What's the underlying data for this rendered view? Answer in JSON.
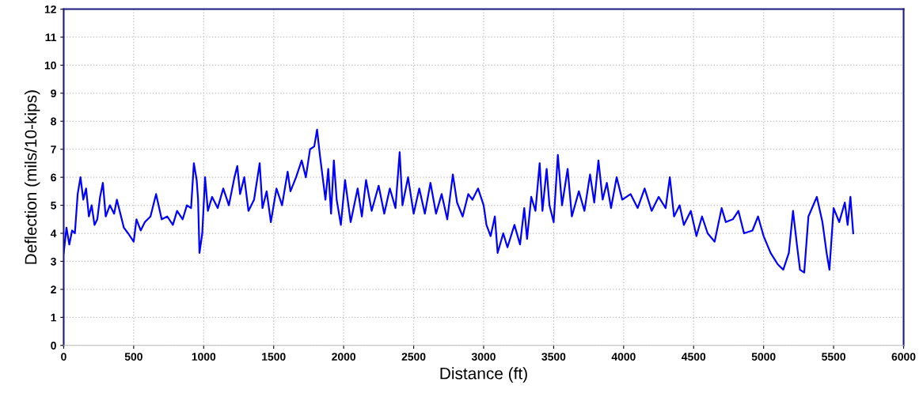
{
  "chart_data": {
    "type": "line",
    "xlabel": "Distance (ft)",
    "ylabel": "Deflection (mils/10-kips)",
    "xlim": [
      0,
      6000
    ],
    "xticks": [
      0,
      500,
      1000,
      1500,
      2000,
      2500,
      3000,
      3500,
      4000,
      4500,
      5000,
      5500,
      6000
    ],
    "ylim": [
      0,
      12
    ],
    "yticks": [
      0,
      1,
      2,
      3,
      4,
      5,
      6,
      7,
      8,
      9,
      10,
      11,
      12
    ],
    "grid": true,
    "marker": "none",
    "line_style": "solid",
    "series": [
      {
        "color": "#0000ff",
        "x": [
          0,
          20,
          40,
          60,
          80,
          100,
          120,
          140,
          160,
          180,
          200,
          220,
          240,
          260,
          280,
          300,
          330,
          360,
          380,
          400,
          430,
          460,
          500,
          520,
          550,
          580,
          620,
          660,
          700,
          740,
          780,
          810,
          850,
          880,
          910,
          930,
          950,
          960,
          970,
          990,
          1010,
          1030,
          1060,
          1100,
          1140,
          1180,
          1220,
          1240,
          1260,
          1290,
          1320,
          1360,
          1400,
          1420,
          1450,
          1480,
          1520,
          1560,
          1600,
          1620,
          1660,
          1700,
          1730,
          1760,
          1790,
          1810,
          1830,
          1850,
          1870,
          1890,
          1910,
          1930,
          1950,
          1980,
          2010,
          2050,
          2100,
          2130,
          2160,
          2200,
          2250,
          2290,
          2330,
          2370,
          2400,
          2420,
          2460,
          2500,
          2540,
          2580,
          2620,
          2660,
          2700,
          2740,
          2780,
          2810,
          2850,
          2890,
          2920,
          2960,
          3000,
          3020,
          3050,
          3080,
          3100,
          3140,
          3170,
          3220,
          3260,
          3290,
          3310,
          3340,
          3370,
          3400,
          3420,
          3450,
          3470,
          3500,
          3530,
          3560,
          3600,
          3630,
          3680,
          3720,
          3760,
          3790,
          3820,
          3850,
          3880,
          3910,
          3950,
          3990,
          4050,
          4100,
          4150,
          4200,
          4250,
          4300,
          4330,
          4360,
          4400,
          4430,
          4480,
          4520,
          4560,
          4600,
          4650,
          4700,
          4730,
          4780,
          4820,
          4860,
          4920,
          4960,
          5000,
          5050,
          5100,
          5140,
          5180,
          5210,
          5240,
          5260,
          5290,
          5320,
          5380,
          5420,
          5450,
          5470,
          5500,
          5540,
          5580,
          5600,
          5620,
          5640
        ],
        "values": [
          3.3,
          4.2,
          3.6,
          4.1,
          4.0,
          5.4,
          6.0,
          5.2,
          5.6,
          4.6,
          5.0,
          4.3,
          4.5,
          5.3,
          5.8,
          4.6,
          5.0,
          4.7,
          5.2,
          4.8,
          4.2,
          4.0,
          3.7,
          4.5,
          4.1,
          4.4,
          4.6,
          5.4,
          4.5,
          4.6,
          4.3,
          4.8,
          4.5,
          5.0,
          4.9,
          6.5,
          5.9,
          5.2,
          3.3,
          4.0,
          6.0,
          4.8,
          5.3,
          4.9,
          5.6,
          5.0,
          6.0,
          6.4,
          5.4,
          6.0,
          4.8,
          5.2,
          6.5,
          4.9,
          5.5,
          4.4,
          5.6,
          5.0,
          6.2,
          5.5,
          6.0,
          6.6,
          6.0,
          7.0,
          7.1,
          7.7,
          6.8,
          6.0,
          5.2,
          6.3,
          4.7,
          6.6,
          5.2,
          4.3,
          5.9,
          4.4,
          5.6,
          4.6,
          5.9,
          4.8,
          5.7,
          4.7,
          5.6,
          4.9,
          6.9,
          5.0,
          6.0,
          4.7,
          5.6,
          4.7,
          5.8,
          4.7,
          5.4,
          4.5,
          6.1,
          5.1,
          4.6,
          5.4,
          5.2,
          5.6,
          5.0,
          4.3,
          3.9,
          4.6,
          3.3,
          4.0,
          3.5,
          4.3,
          3.6,
          4.9,
          3.8,
          5.3,
          4.8,
          6.5,
          4.8,
          6.3,
          5.0,
          4.4,
          6.8,
          5.0,
          6.3,
          4.6,
          5.5,
          4.8,
          6.1,
          5.1,
          6.6,
          5.2,
          5.8,
          4.9,
          6.0,
          5.2,
          5.4,
          4.9,
          5.6,
          4.8,
          5.3,
          4.9,
          6.0,
          4.6,
          5.0,
          4.3,
          4.8,
          3.9,
          4.6,
          4.0,
          3.7,
          4.9,
          4.4,
          4.5,
          4.8,
          4.0,
          4.1,
          4.6,
          3.9,
          3.3,
          2.9,
          2.7,
          3.3,
          4.8,
          3.5,
          2.7,
          2.6,
          4.6,
          5.3,
          4.4,
          3.3,
          2.7,
          4.9,
          4.4,
          5.1,
          4.3,
          5.3,
          4.0
        ]
      }
    ]
  }
}
